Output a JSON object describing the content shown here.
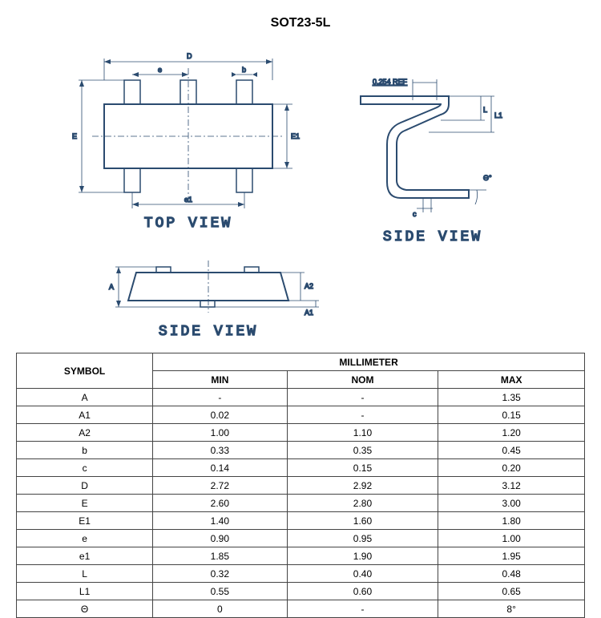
{
  "title": "SOT23-5L",
  "views": {
    "top": "TOP  VIEW",
    "side1": "SIDE  VIEW",
    "side2": "SIDE  VIEW"
  },
  "dims": {
    "D": "D",
    "e": "e",
    "b": "b",
    "E": "E",
    "E1": "E1",
    "e1": "e1",
    "A": "A",
    "A2": "A2",
    "A1": "A1",
    "ref": "0.254 REF",
    "L": "L",
    "L1": "L1",
    "c": "c",
    "theta": "Θ°"
  },
  "stroke": "#2b4b6f",
  "table": {
    "header1": "SYMBOL",
    "header2": "MILLIMETER",
    "subheaders": [
      "MIN",
      "NOM",
      "MAX"
    ],
    "rows": [
      [
        "A",
        "-",
        "-",
        "1.35"
      ],
      [
        "A1",
        "0.02",
        "-",
        "0.15"
      ],
      [
        "A2",
        "1.00",
        "1.10",
        "1.20"
      ],
      [
        "b",
        "0.33",
        "0.35",
        "0.45"
      ],
      [
        "c",
        "0.14",
        "0.15",
        "0.20"
      ],
      [
        "D",
        "2.72",
        "2.92",
        "3.12"
      ],
      [
        "E",
        "2.60",
        "2.80",
        "3.00"
      ],
      [
        "E1",
        "1.40",
        "1.60",
        "1.80"
      ],
      [
        "e",
        "0.90",
        "0.95",
        "1.00"
      ],
      [
        "e1",
        "1.85",
        "1.90",
        "1.95"
      ],
      [
        "L",
        "0.32",
        "0.40",
        "0.48"
      ],
      [
        "L1",
        "0.55",
        "0.60",
        "0.65"
      ],
      [
        "Θ",
        "0",
        "-",
        "8°"
      ]
    ]
  }
}
